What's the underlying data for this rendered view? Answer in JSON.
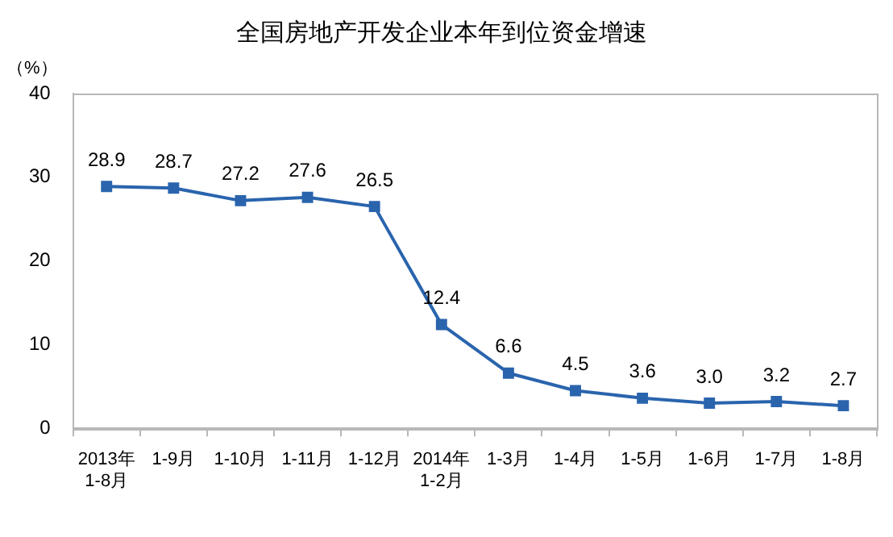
{
  "chart_data": {
    "type": "line",
    "title": "全国房地产开发企业本年到位资金增速",
    "ylabel": "（%）",
    "categories": [
      "2013年\n1-8月",
      "1-9月",
      "1-10月",
      "1-11月",
      "1-12月",
      "2014年\n1-2月",
      "1-3月",
      "1-4月",
      "1-5月",
      "1-6月",
      "1-7月",
      "1-8月"
    ],
    "series": [
      {
        "color": "#2a64ad",
        "values": [
          28.9,
          28.7,
          27.2,
          27.6,
          26.5,
          12.4,
          6.6,
          4.5,
          3.6,
          3.0,
          3.2,
          2.7
        ],
        "value_labels": [
          "28.9",
          "28.7",
          "27.2",
          "27.6",
          "26.5",
          "12.4",
          "6.6",
          "4.5",
          "3.6",
          "3.0",
          "3.2",
          "2.7"
        ]
      }
    ],
    "ylim": [
      0,
      40
    ],
    "yticks": [
      0,
      10,
      20,
      30,
      40
    ],
    "grid": false,
    "legend": false,
    "marker": "square",
    "line_style": "solid"
  }
}
